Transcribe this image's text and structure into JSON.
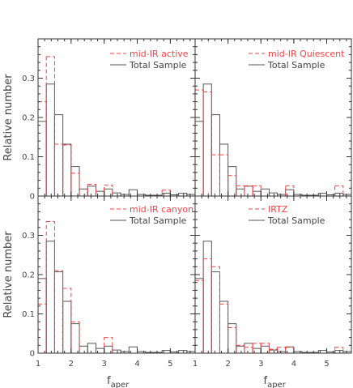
{
  "colors": {
    "total": "#555555",
    "subsample": "#ee4444",
    "axis": "#333333"
  },
  "chart_data": [
    {
      "type": "histogram",
      "panel": "top-left",
      "bin_edges": [
        1.0,
        1.25,
        1.5,
        1.75,
        2.0,
        2.25,
        2.5,
        2.75,
        3.0,
        3.25,
        3.5,
        3.75,
        4.0,
        4.25,
        4.5,
        4.75,
        5.0,
        5.25,
        5.5,
        5.75
      ],
      "series": [
        {
          "name": "Total Sample",
          "style": "solid",
          "values": [
            0.19,
            0.285,
            0.207,
            0.132,
            0.075,
            0.018,
            0.025,
            0.012,
            0.018,
            0.008,
            0.004,
            0.016,
            0.004,
            0.002,
            0.002,
            0.007,
            0.003,
            0.007,
            0.004
          ]
        },
        {
          "name": "mid-IR active",
          "style": "dashed",
          "values": [
            0.24,
            0.355,
            0.132,
            0.13,
            0.058,
            0.0,
            0.03,
            0.0,
            0.028,
            0.0,
            0.0,
            0.0,
            0.0,
            0.0,
            0.0,
            0.015,
            0.0,
            0.0,
            0.0
          ]
        }
      ],
      "xlim": [
        1,
        5.75
      ],
      "ylim": [
        0,
        0.4
      ],
      "yticks": [
        0,
        0.1,
        0.2,
        0.3
      ],
      "ytick_labels": [
        "0",
        "0.1",
        "0.2",
        "0.3"
      ],
      "ylabel": "Relative number",
      "xlabel": ""
    },
    {
      "type": "histogram",
      "panel": "top-right",
      "bin_edges": [
        1.0,
        1.25,
        1.5,
        1.75,
        2.0,
        2.25,
        2.5,
        2.75,
        3.0,
        3.25,
        3.5,
        3.75,
        4.0,
        4.25,
        4.5,
        4.75,
        5.0,
        5.25,
        5.5,
        5.75
      ],
      "series": [
        {
          "name": "Total Sample",
          "style": "solid",
          "values": [
            0.19,
            0.285,
            0.207,
            0.132,
            0.075,
            0.018,
            0.025,
            0.012,
            0.018,
            0.008,
            0.004,
            0.016,
            0.004,
            0.002,
            0.002,
            0.007,
            0.003,
            0.007,
            0.004
          ]
        },
        {
          "name": "mid-IR Quiescent",
          "style": "dashed",
          "values": [
            0.27,
            0.265,
            0.105,
            0.105,
            0.052,
            0.026,
            0.026,
            0.026,
            0.0,
            0.0,
            0.0,
            0.026,
            0.0,
            0.0,
            0.0,
            0.0,
            0.0,
            0.026,
            0.0
          ]
        }
      ],
      "xlim": [
        1,
        5.75
      ],
      "ylim": [
        0,
        0.4
      ],
      "yticks": [
        0,
        0.1,
        0.2,
        0.3
      ],
      "ytick_labels": [],
      "ylabel": "",
      "xlabel": ""
    },
    {
      "type": "histogram",
      "panel": "bottom-left",
      "bin_edges": [
        1.0,
        1.25,
        1.5,
        1.75,
        2.0,
        2.25,
        2.5,
        2.75,
        3.0,
        3.25,
        3.5,
        3.75,
        4.0,
        4.25,
        4.5,
        4.75,
        5.0,
        5.25,
        5.5,
        5.75
      ],
      "series": [
        {
          "name": "Total Sample",
          "style": "solid",
          "values": [
            0.19,
            0.285,
            0.207,
            0.132,
            0.075,
            0.018,
            0.025,
            0.012,
            0.018,
            0.008,
            0.004,
            0.016,
            0.004,
            0.002,
            0.002,
            0.007,
            0.003,
            0.007,
            0.004
          ]
        },
        {
          "name": "mid-IR canyon",
          "style": "dashed",
          "values": [
            0.125,
            0.335,
            0.21,
            0.165,
            0.08,
            0.0,
            0.0,
            0.0,
            0.04,
            0.0,
            0.0,
            0.0,
            0.0,
            0.0,
            0.0,
            0.0,
            0.0,
            0.0,
            0.0
          ]
        }
      ],
      "xlim": [
        1,
        5.75
      ],
      "ylim": [
        0,
        0.4
      ],
      "yticks": [
        0,
        0.1,
        0.2,
        0.3
      ],
      "ytick_labels": [
        "0",
        "0.1",
        "0.2",
        "0.3"
      ],
      "xticks": [
        1,
        2,
        3,
        4,
        5
      ],
      "xtick_labels": [
        "1",
        "2",
        "3",
        "4",
        "5"
      ],
      "ylabel": "Relative number",
      "xlabel": "f_aper"
    },
    {
      "type": "histogram",
      "panel": "bottom-right",
      "bin_edges": [
        1.0,
        1.25,
        1.5,
        1.75,
        2.0,
        2.25,
        2.5,
        2.75,
        3.0,
        3.25,
        3.5,
        3.75,
        4.0,
        4.25,
        4.5,
        4.75,
        5.0,
        5.25,
        5.5,
        5.75
      ],
      "series": [
        {
          "name": "Total Sample",
          "style": "solid",
          "values": [
            0.19,
            0.285,
            0.207,
            0.132,
            0.075,
            0.018,
            0.025,
            0.012,
            0.018,
            0.008,
            0.004,
            0.016,
            0.004,
            0.002,
            0.002,
            0.007,
            0.003,
            0.007,
            0.004
          ]
        },
        {
          "name": "IRTZ",
          "style": "dashed",
          "values": [
            0.185,
            0.24,
            0.22,
            0.125,
            0.065,
            0.02,
            0.015,
            0.025,
            0.025,
            0.01,
            0.015,
            0.015,
            0.0,
            0.0,
            0.0,
            0.0,
            0.0,
            0.015,
            0.0
          ]
        }
      ],
      "xlim": [
        1,
        5.75
      ],
      "ylim": [
        0,
        0.4
      ],
      "yticks": [
        0,
        0.1,
        0.2,
        0.3
      ],
      "ytick_labels": [],
      "xticks": [
        1,
        2,
        3,
        4,
        5
      ],
      "xtick_labels": [
        "1",
        "2",
        "3",
        "4",
        "5"
      ],
      "ylabel": "",
      "xlabel": "f_aper"
    }
  ]
}
